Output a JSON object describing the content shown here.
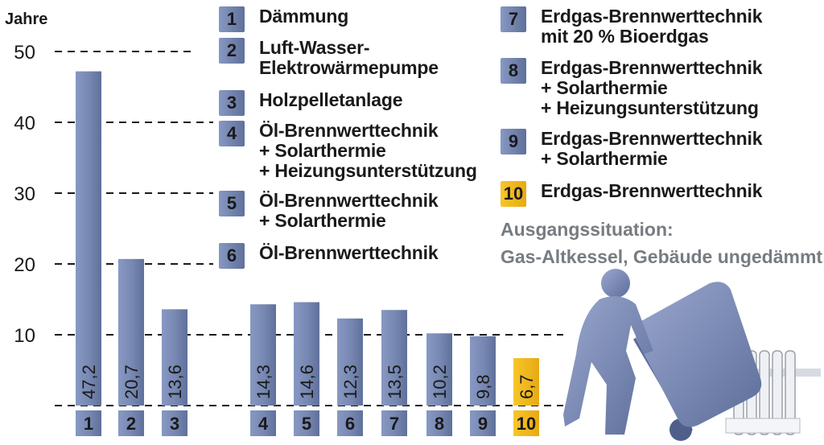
{
  "chart_data": {
    "type": "bar",
    "ylabel": "Jahre",
    "ylim": [
      0,
      50
    ],
    "yticks": [
      10,
      20,
      30,
      40,
      50
    ],
    "grid": "dashed horizontal",
    "bar_color": "#7d8fb8",
    "highlight_color": "#f2b81b",
    "categories": [
      "1",
      "2",
      "3",
      "4",
      "5",
      "6",
      "7",
      "8",
      "9",
      "10"
    ],
    "values": [
      47.2,
      20.7,
      13.6,
      14.3,
      14.6,
      12.3,
      13.5,
      10.2,
      9.8,
      6.7
    ],
    "value_labels": [
      "47,2",
      "20,7",
      "13,6",
      "14,3",
      "14,6",
      "12,3",
      "13,5",
      "10,2",
      "9,8",
      "6,7"
    ],
    "highlighted": [
      "10"
    ]
  },
  "legend": [
    {
      "num": "1",
      "label": "Dämmung"
    },
    {
      "num": "2",
      "label": "Luft-Wasser-\nElektrowärmepumpe"
    },
    {
      "num": "3",
      "label": "Holzpelletanlage"
    },
    {
      "num": "4",
      "label": "Öl-Brennwerttechnik\n+ Solarthermie\n+ Heizungsunterstützung"
    },
    {
      "num": "5",
      "label": "Öl-Brennwerttechnik\n+ Solarthermie"
    },
    {
      "num": "6",
      "label": "Öl-Brennwerttechnik"
    },
    {
      "num": "7",
      "label": "Erdgas-Brennwerttechnik\nmit 20 % Bioerdgas"
    },
    {
      "num": "8",
      "label": "Erdgas-Brennwerttechnik\n+ Solarthermie\n+ Heizungsunterstützung"
    },
    {
      "num": "9",
      "label": "Erdgas-Brennwerttechnik\n+ Solarthermie"
    },
    {
      "num": "10",
      "label": "Erdgas-Brennwerttechnik"
    }
  ],
  "baseline_note": "Ausgangssituation:\nGas-Altkessel, Gebäude ungedämmt",
  "illustration": "person-pushing-boiler-on-hand-truck-icon"
}
